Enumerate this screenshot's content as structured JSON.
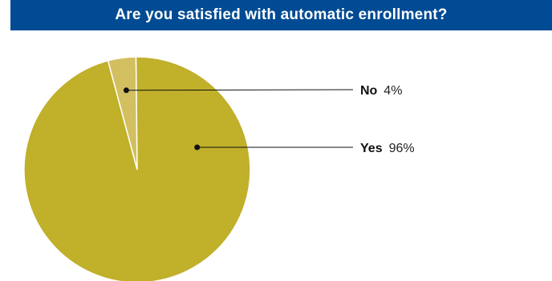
{
  "chart_data": {
    "type": "pie",
    "title": "Are you satisfied with automatic enrollment?",
    "slices": [
      {
        "label": "No",
        "value": 4,
        "display": "4%",
        "color": "#d2c060"
      },
      {
        "label": "Yes",
        "value": 96,
        "display": "96%",
        "color": "#c0b02a"
      }
    ],
    "legend_placement": "right"
  }
}
